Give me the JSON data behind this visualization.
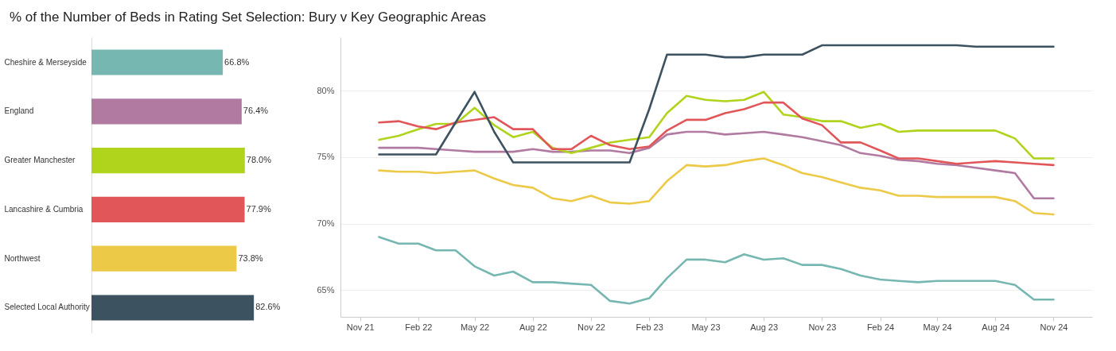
{
  "chart_data": [
    {
      "type": "bar",
      "orientation": "horizontal",
      "title": "% of the Number of Beds in Rating Set Selection: Bury v Key Geographic Areas",
      "categories": [
        "Cheshire & Merseyside",
        "England",
        "Greater Manchester",
        "Lancashire & Cumbria",
        "Northwest",
        "Selected Local Authority"
      ],
      "values": [
        66.8,
        76.4,
        78.0,
        77.9,
        73.8,
        82.6
      ],
      "value_labels": [
        "66.8%",
        "76.4%",
        "78.0%",
        "77.9%",
        "73.8%",
        "82.6%"
      ],
      "colors": [
        "#76b7b2",
        "#b07aa1",
        "#b0d31c",
        "#e15759",
        "#edc948",
        "#3d5260"
      ]
    },
    {
      "type": "line",
      "grid": "y",
      "legend": false,
      "x": [
        "2021-12",
        "2022-01",
        "2022-02",
        "2022-03",
        "2022-04",
        "2022-05",
        "2022-06",
        "2022-07",
        "2022-08",
        "2022-09",
        "2022-10",
        "2022-11",
        "2022-12",
        "2023-01",
        "2023-02",
        "2023-03",
        "2023-04",
        "2023-05",
        "2023-06",
        "2023-07",
        "2023-08",
        "2023-09",
        "2023-10",
        "2023-11",
        "2023-12",
        "2024-01",
        "2024-02",
        "2024-03",
        "2024-04",
        "2024-05",
        "2024-06",
        "2024-07",
        "2024-08",
        "2024-09",
        "2024-10",
        "2024-11"
      ],
      "xlim": [
        "2021-10",
        "2025-01"
      ],
      "xticks": [
        {
          "value": "2021-11",
          "label": "Nov 21"
        },
        {
          "value": "2022-02",
          "label": "Feb 22"
        },
        {
          "value": "2022-05",
          "label": "May 22"
        },
        {
          "value": "2022-08",
          "label": "Aug 22"
        },
        {
          "value": "2022-11",
          "label": "Nov 22"
        },
        {
          "value": "2023-02",
          "label": "Feb 23"
        },
        {
          "value": "2023-05",
          "label": "May 23"
        },
        {
          "value": "2023-08",
          "label": "Aug 23"
        },
        {
          "value": "2023-11",
          "label": "Nov 23"
        },
        {
          "value": "2024-02",
          "label": "Feb 24"
        },
        {
          "value": "2024-05",
          "label": "May 24"
        },
        {
          "value": "2024-08",
          "label": "Aug 24"
        },
        {
          "value": "2024-11",
          "label": "Nov 24"
        }
      ],
      "ylim": [
        63,
        84
      ],
      "yticks": [
        {
          "value": 65,
          "label": "65%"
        },
        {
          "value": 70,
          "label": "70%"
        },
        {
          "value": 75,
          "label": "75%"
        },
        {
          "value": 80,
          "label": "80%"
        }
      ],
      "series": [
        {
          "color": "#76b7b2",
          "values": [
            69.0,
            68.5,
            68.5,
            68.0,
            68.0,
            66.8,
            66.1,
            66.4,
            65.6,
            65.6,
            65.5,
            65.4,
            64.2,
            64.0,
            64.4,
            65.9,
            67.3,
            67.3,
            67.1,
            67.7,
            67.3,
            67.4,
            66.9,
            66.9,
            66.6,
            66.1,
            65.8,
            65.7,
            65.6,
            65.7,
            65.7,
            65.7,
            65.7,
            65.4,
            64.3,
            64.3
          ]
        },
        {
          "color": "#b07aa1",
          "values": [
            75.7,
            75.7,
            75.7,
            75.6,
            75.5,
            75.4,
            75.4,
            75.4,
            75.6,
            75.4,
            75.4,
            75.5,
            75.5,
            75.3,
            75.7,
            76.7,
            76.9,
            76.9,
            76.7,
            76.8,
            76.9,
            76.7,
            76.5,
            76.2,
            75.9,
            75.3,
            75.1,
            74.8,
            74.7,
            74.5,
            74.4,
            74.2,
            74.0,
            73.8,
            71.9,
            71.9
          ]
        },
        {
          "color": "#b0d31c",
          "values": [
            76.3,
            76.6,
            77.1,
            77.5,
            77.5,
            78.7,
            77.4,
            76.5,
            76.9,
            75.7,
            75.3,
            75.7,
            76.1,
            76.3,
            76.5,
            78.3,
            79.6,
            79.3,
            79.2,
            79.3,
            79.9,
            78.2,
            78.0,
            77.7,
            77.7,
            77.2,
            77.5,
            76.9,
            77.0,
            77.0,
            77.0,
            77.0,
            77.0,
            76.4,
            74.9,
            74.9
          ]
        },
        {
          "color": "#e15759",
          "values": [
            77.6,
            77.7,
            77.3,
            77.1,
            77.6,
            77.8,
            78.0,
            77.1,
            77.1,
            75.6,
            75.6,
            76.6,
            75.9,
            75.6,
            75.8,
            77.0,
            77.8,
            77.8,
            78.3,
            78.6,
            79.1,
            79.1,
            77.9,
            77.4,
            76.1,
            76.1,
            75.5,
            74.9,
            74.9,
            74.7,
            74.5,
            74.6,
            74.7,
            74.6,
            74.5,
            74.4
          ]
        },
        {
          "color": "#edc948",
          "values": [
            74.0,
            73.9,
            73.9,
            73.8,
            73.9,
            74.0,
            73.4,
            72.9,
            72.7,
            71.9,
            71.7,
            72.1,
            71.6,
            71.5,
            71.7,
            73.2,
            74.4,
            74.3,
            74.4,
            74.7,
            74.9,
            74.4,
            73.8,
            73.5,
            73.1,
            72.7,
            72.5,
            72.1,
            72.1,
            72.0,
            72.0,
            72.0,
            72.0,
            71.7,
            70.8,
            70.7
          ]
        },
        {
          "color": "#3d5260",
          "values": [
            75.2,
            75.2,
            75.2,
            75.2,
            77.6,
            79.9,
            76.9,
            74.6,
            74.6,
            74.6,
            74.6,
            74.6,
            74.6,
            74.6,
            78.6,
            82.7,
            82.7,
            82.7,
            82.5,
            82.5,
            82.7,
            82.7,
            82.7,
            83.4,
            83.4,
            83.4,
            83.4,
            83.4,
            83.4,
            83.4,
            83.4,
            83.3,
            83.3,
            83.3,
            83.3,
            83.3
          ]
        }
      ]
    }
  ]
}
